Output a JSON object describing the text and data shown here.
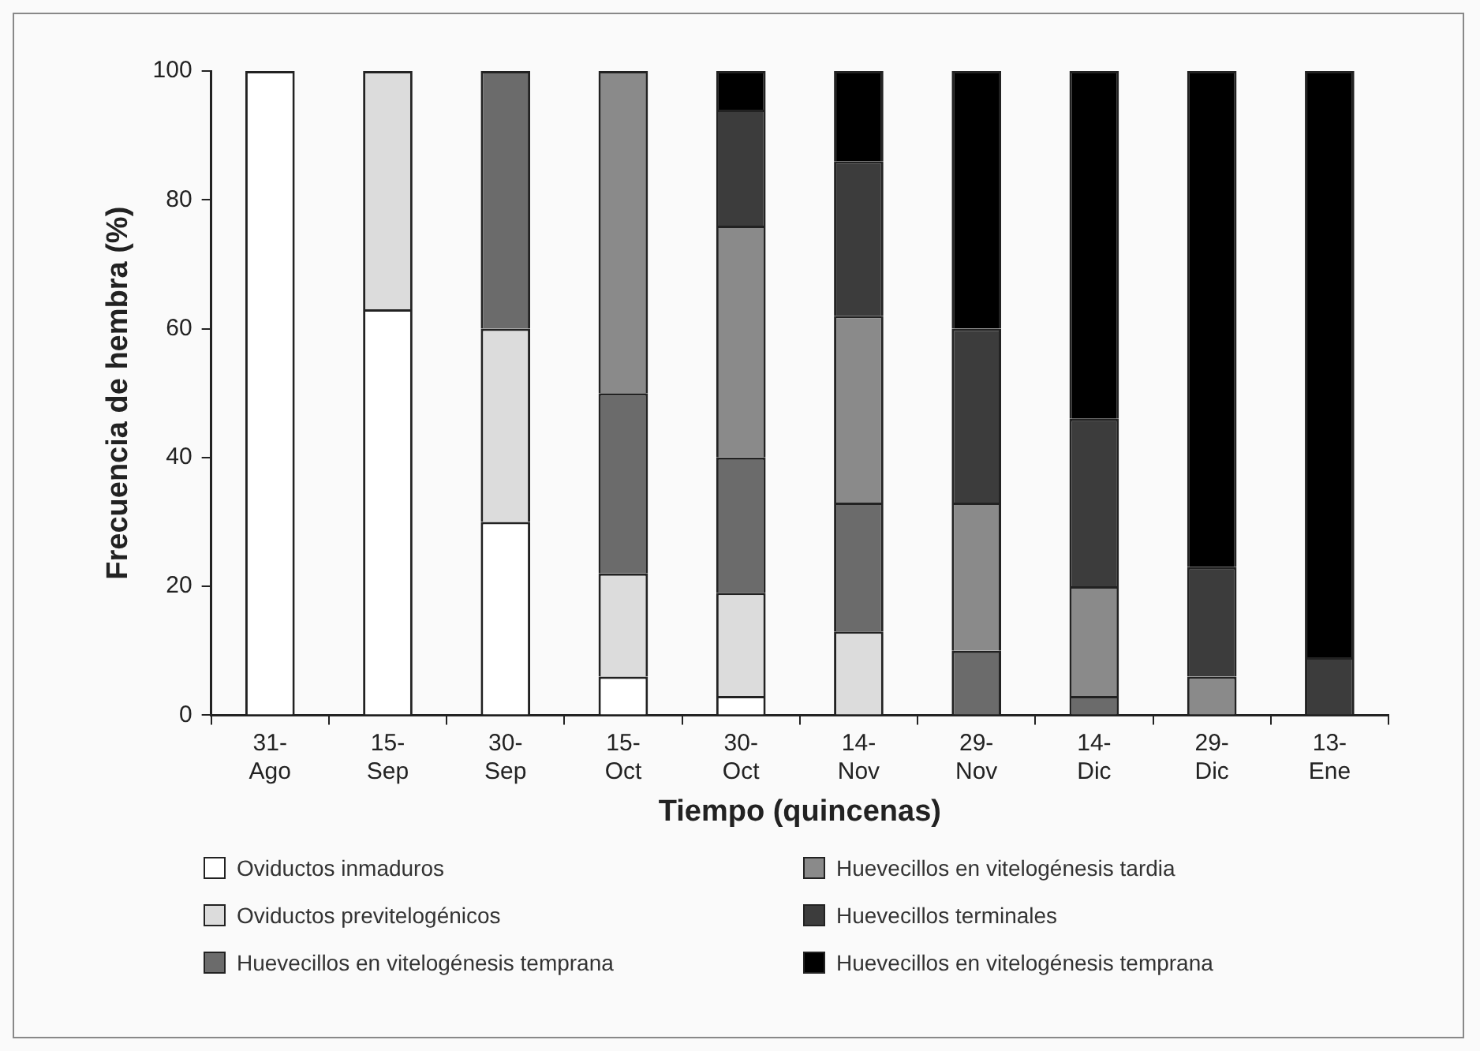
{
  "chart_data": {
    "type": "bar",
    "stacked": true,
    "xlabel": "Tiempo (quincenas)",
    "ylabel": "Frecuencia de hembra (%)",
    "categories": [
      "31-\nAgo",
      "15-\nSep",
      "30-\nSep",
      "15-\nOct",
      "30-\nOct",
      "14-\nNov",
      "29-\nNov",
      "14-\nDic",
      "29-\nDic",
      "13-\nEne"
    ],
    "series": [
      {
        "name": "Oviductos inmaduros",
        "color": "#ffffff",
        "values": [
          100,
          63,
          30,
          6,
          3,
          0,
          0,
          0,
          0,
          0
        ]
      },
      {
        "name": "Oviductos previtelogénicos",
        "color": "#dcdcdc",
        "values": [
          0,
          37,
          30,
          16,
          16,
          13,
          0,
          0,
          0,
          0
        ]
      },
      {
        "name": "Huevecillos en vitelogénesis temprana",
        "color": "#6b6b6b",
        "values": [
          0,
          0,
          40,
          28,
          21,
          20,
          10,
          3,
          0,
          0
        ]
      },
      {
        "name": "Huevecillos en vitelogénesis tardia",
        "color": "#8a8a8a",
        "values": [
          0,
          0,
          0,
          50,
          36,
          29,
          23,
          17,
          6,
          0
        ]
      },
      {
        "name": "Huevecillos terminales",
        "color": "#3c3c3c",
        "values": [
          0,
          0,
          0,
          0,
          18,
          24,
          27,
          26,
          17,
          9
        ]
      },
      {
        "name": "Huevecillos en vitelogénesis temprana",
        "color": "#000000",
        "values": [
          0,
          0,
          0,
          0,
          6,
          14,
          40,
          54,
          77,
          91
        ]
      }
    ],
    "ylim": [
      0,
      100
    ],
    "yticks": [
      0,
      20,
      40,
      60,
      80,
      100
    ],
    "grid": false,
    "legend": "bottom"
  }
}
